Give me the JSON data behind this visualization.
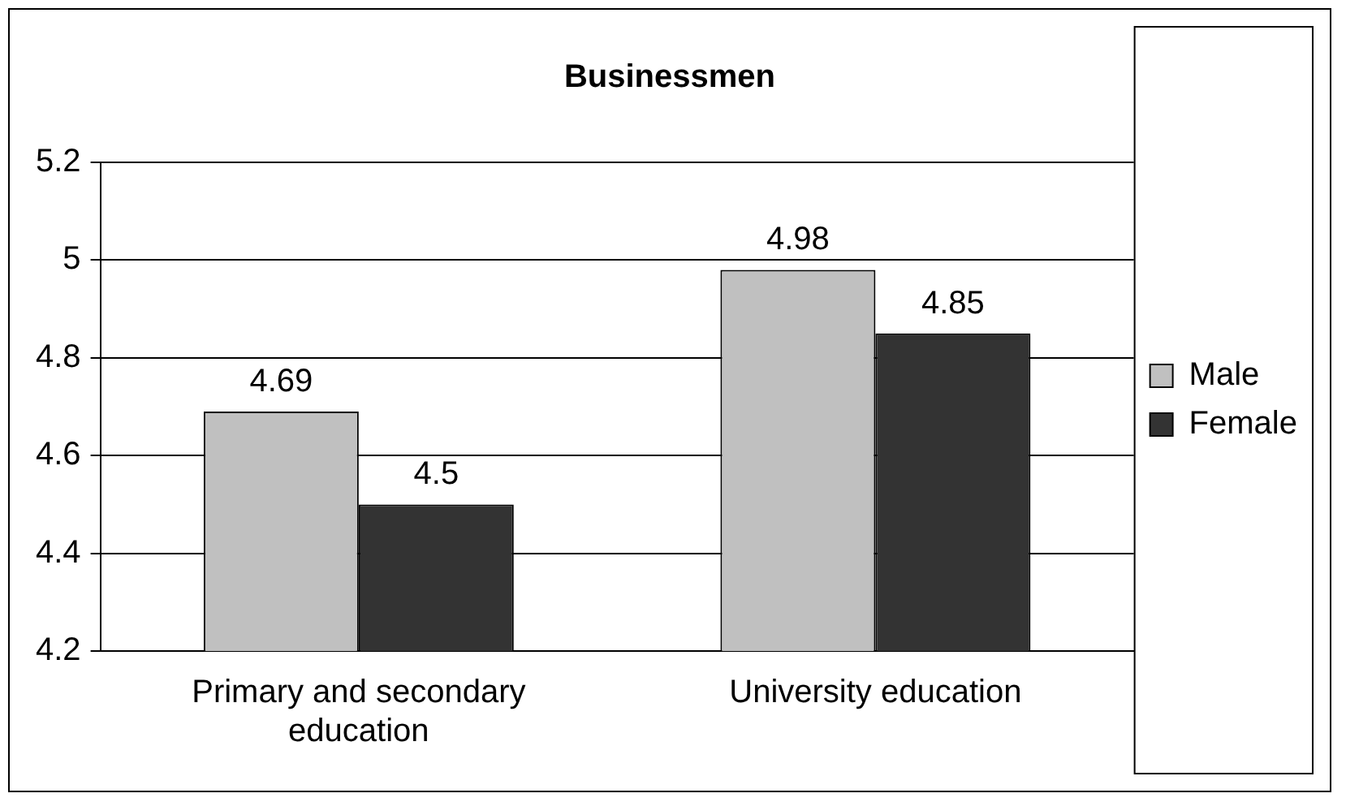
{
  "chart_data": {
    "type": "bar",
    "title": "Businessmen",
    "categories": [
      "Primary and secondary education",
      "University education"
    ],
    "series": [
      {
        "name": "Male",
        "color": "#c0c0c0",
        "values": [
          4.69,
          4.98
        ]
      },
      {
        "name": "Female",
        "color": "#333333",
        "values": [
          4.5,
          4.85
        ]
      }
    ],
    "ylim": [
      4.2,
      5.2
    ],
    "yticks": [
      4.2,
      4.4,
      4.6,
      4.8,
      5,
      5.2
    ],
    "grid": "y",
    "legend": "right",
    "data_labels": true
  }
}
